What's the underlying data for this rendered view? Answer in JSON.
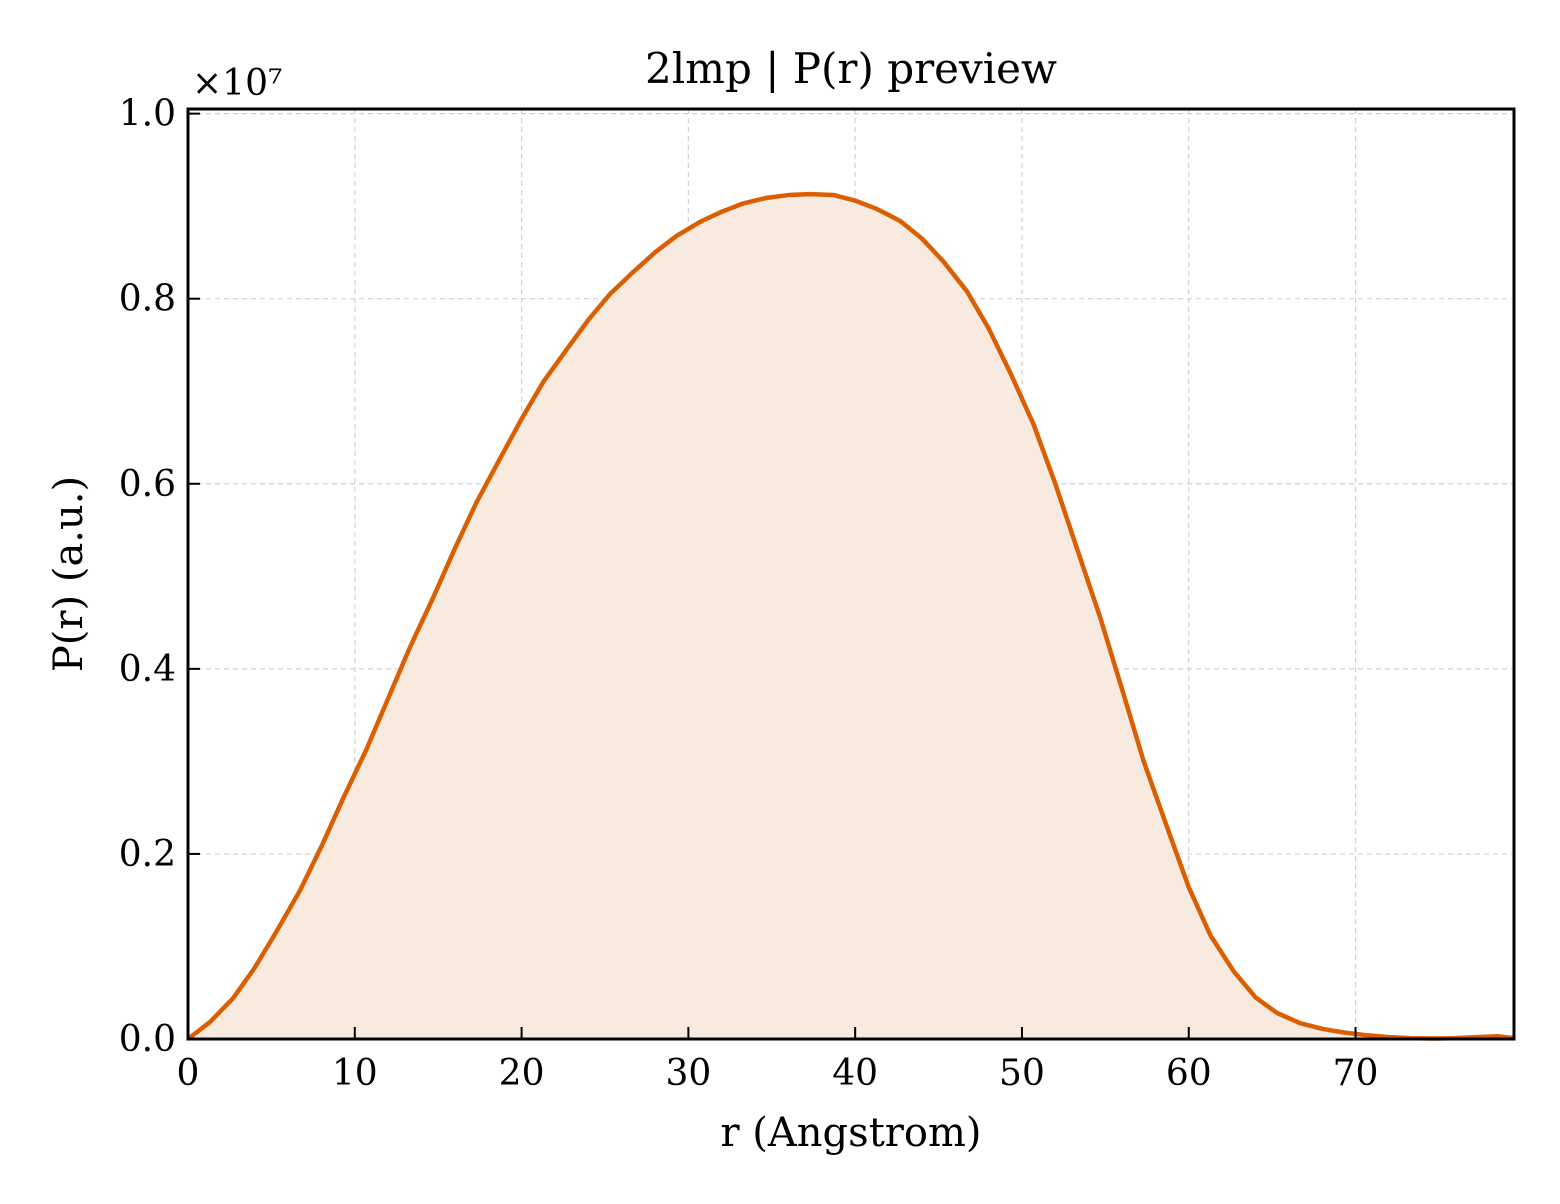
{
  "chart_data": {
    "type": "area",
    "title": "2lmp | P(r) preview",
    "xlabel": "r (Angstrom)",
    "ylabel": "P(r) (a.u.)",
    "y_scale_label": "×10⁷",
    "y_scale_factor": 10000000,
    "xlim": [
      0,
      79.5
    ],
    "ylim": [
      0,
      1.005
    ],
    "x_ticks": [
      0,
      10,
      20,
      30,
      40,
      50,
      60,
      70
    ],
    "x_tick_labels": [
      "0",
      "10",
      "20",
      "30",
      "40",
      "50",
      "60",
      "70"
    ],
    "y_ticks": [
      0.0,
      0.2,
      0.4,
      0.6,
      0.8,
      1.0
    ],
    "y_tick_labels": [
      "0.0",
      "0.2",
      "0.4",
      "0.6",
      "0.8",
      "1.0"
    ],
    "grid": true,
    "line_color": "#d95f02",
    "fill_color": "#f9eadf",
    "series": [
      {
        "x": [
          0,
          1.3,
          2.7,
          4.0,
          5.3,
          6.7,
          8.0,
          9.3,
          10.7,
          12.0,
          13.3,
          14.7,
          16.0,
          17.3,
          18.7,
          20.0,
          21.3,
          22.7,
          24.0,
          25.3,
          26.7,
          28.0,
          29.3,
          30.7,
          32.0,
          33.3,
          34.7,
          36.0,
          37.3,
          38.7,
          40.0,
          41.3,
          42.7,
          44.0,
          45.3,
          46.7,
          48.0,
          49.3,
          50.7,
          52.0,
          53.3,
          54.7,
          56.0,
          57.3,
          58.7,
          60.0,
          61.3,
          62.7,
          64.0,
          65.3,
          66.7,
          68.0,
          69.3,
          70.7,
          72.0,
          73.3,
          74.7,
          76.0,
          77.3,
          78.5,
          79.5
        ],
        "y": [
          0.0,
          0.018,
          0.044,
          0.077,
          0.116,
          0.16,
          0.208,
          0.26,
          0.313,
          0.368,
          0.423,
          0.477,
          0.53,
          0.58,
          0.627,
          0.67,
          0.71,
          0.745,
          0.777,
          0.805,
          0.829,
          0.85,
          0.868,
          0.883,
          0.894,
          0.903,
          0.909,
          0.912,
          0.913,
          0.912,
          0.906,
          0.897,
          0.884,
          0.865,
          0.84,
          0.808,
          0.768,
          0.72,
          0.664,
          0.6,
          0.53,
          0.455,
          0.378,
          0.3,
          0.229,
          0.164,
          0.112,
          0.073,
          0.045,
          0.028,
          0.017,
          0.011,
          0.007,
          0.004,
          0.002,
          0.001,
          0.0005,
          0.001,
          0.002,
          0.003,
          0.001
        ]
      }
    ]
  }
}
